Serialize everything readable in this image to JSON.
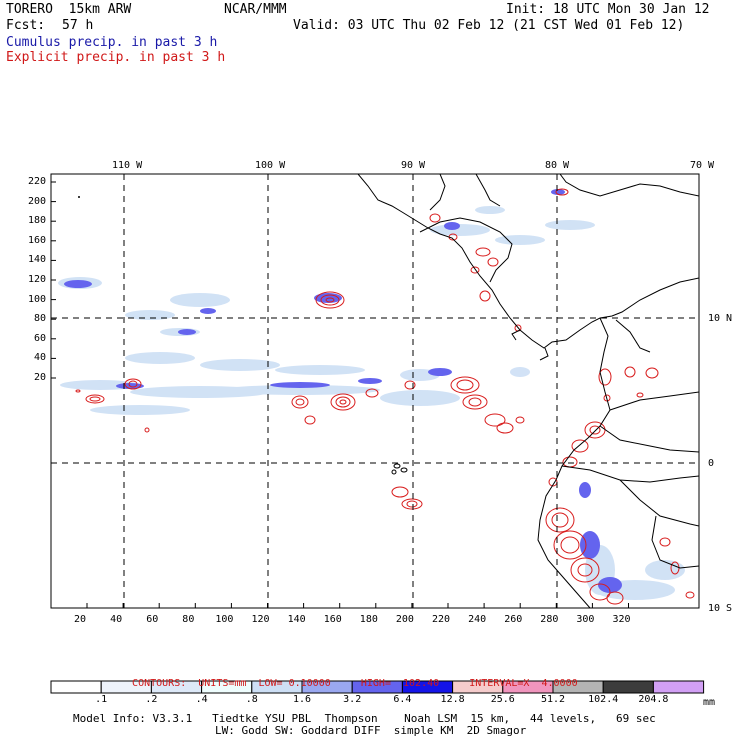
{
  "header": {
    "model": "TORERO  15km ARW",
    "org": "NCAR/MMM",
    "init": "Init: 18 UTC Mon 30 Jan 12",
    "fcst_label": "Fcst:",
    "fcst_value": "57 h",
    "valid": "Valid: 03 UTC Thu 02 Feb 12 (21 CST Wed 01 Feb 12)",
    "field1": "Cumulus precip. in past 3 h",
    "field2": "Explicit precip. in past 3 h"
  },
  "top_axis": [
    "110 W",
    "100 W",
    "90 W",
    "80 W",
    "70 W"
  ],
  "right_axis": [
    "10 N",
    "0",
    "10 S"
  ],
  "left_axis": [
    "220",
    "200",
    "180",
    "160",
    "140",
    "120",
    "100",
    "80",
    "60",
    "40",
    "20"
  ],
  "bottom_axis": [
    "20",
    "40",
    "60",
    "80",
    "100",
    "120",
    "140",
    "160",
    "180",
    "200",
    "220",
    "240",
    "260",
    "280",
    "300",
    "320"
  ],
  "contours": {
    "label": "CONTOURS:",
    "units": "UNITS=mm",
    "low": "LOW= 0.10000",
    "high": "HIGH=  102.40",
    "interval": "INTERVAL=X  4.0000"
  },
  "colorbar": {
    "labels": [
      ".1",
      ".2",
      ".4",
      ".8",
      "1.6",
      "3.2",
      "6.4",
      "12.8",
      "25.6",
      "51.2",
      "102.4",
      "204.8"
    ],
    "unit": "mm",
    "colors": [
      "#ffffff",
      "#eef3fb",
      "#dde9f8",
      "#eefdfd",
      "#cddff5",
      "#9aa8f0",
      "#6464ee",
      "#1414e8",
      "#f5cccc",
      "#f095bd",
      "#b4b4b4",
      "#3c3c3c",
      "#d2a0f5"
    ]
  },
  "model_info": {
    "line1": "Model Info: V3.3.1   Tiedtke YSU PBL  Thompson    Noah LSM  15 km,   44 levels,   69 sec",
    "line2": "LW: Godd SW: Goddard DIFF  simple KM  2D Smagor"
  }
}
